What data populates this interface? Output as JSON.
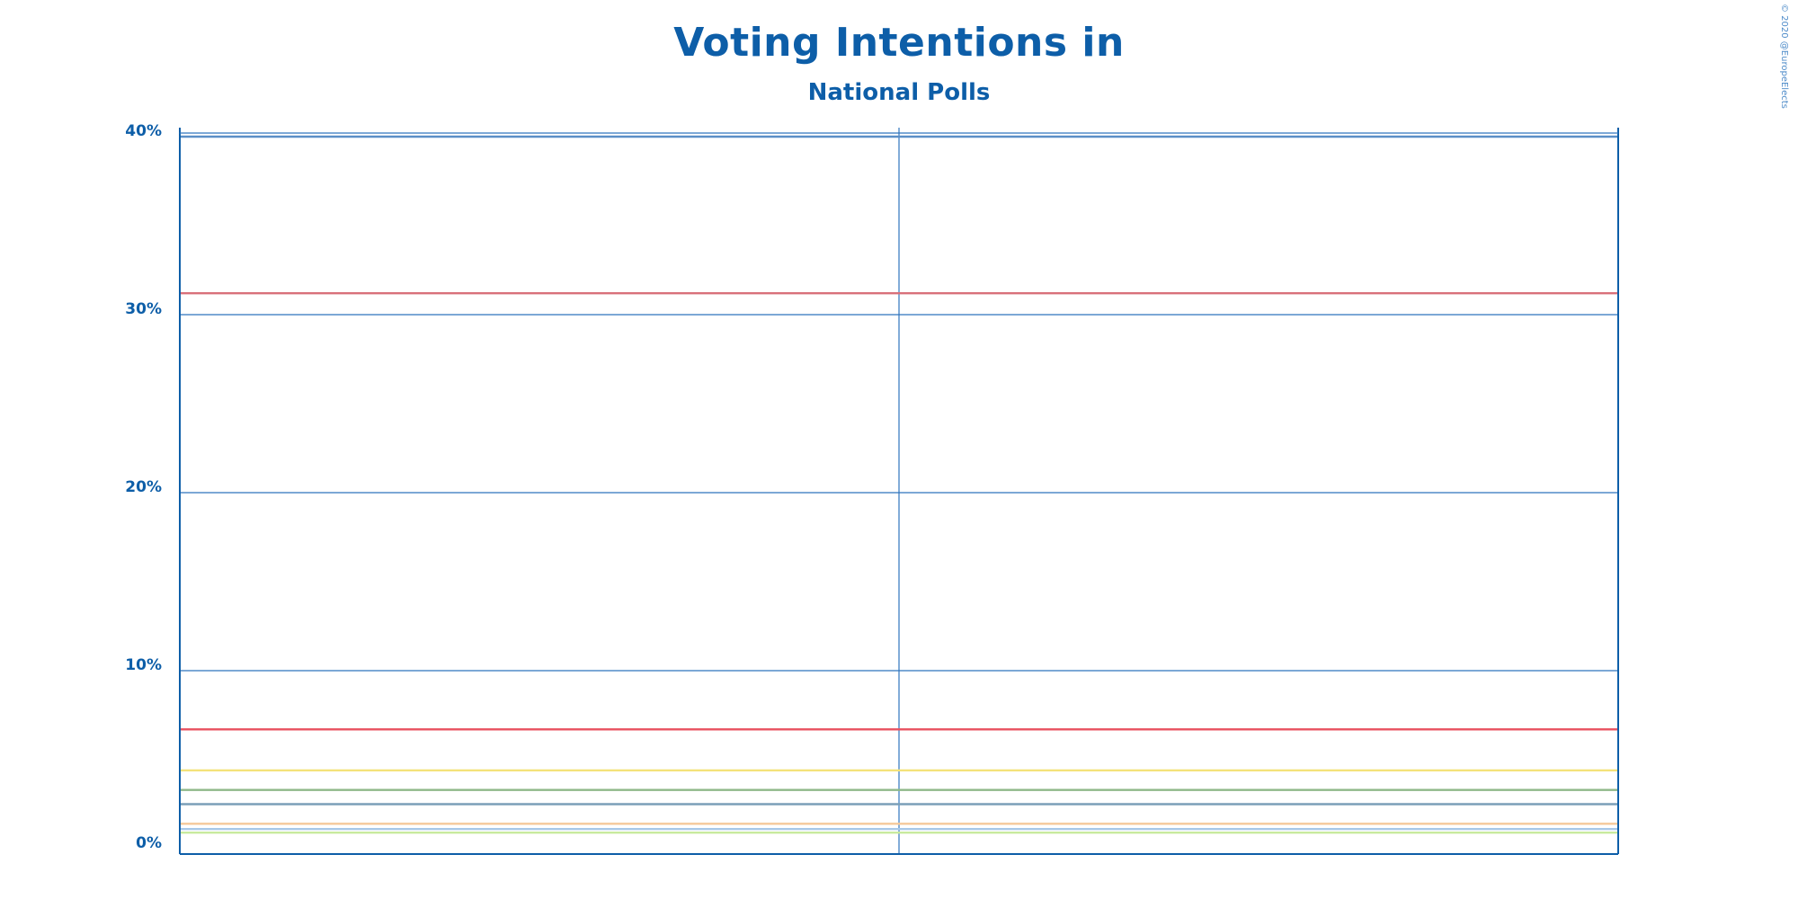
{
  "copyright": "© 2020 @EuropeElects",
  "chart_data": {
    "type": "line",
    "title": "Voting Intentions in",
    "subtitle": "National Polls",
    "xlabel": "",
    "ylabel": "",
    "ylim": [
      0,
      40
    ],
    "y_ticks": [
      0,
      10,
      20,
      30,
      40
    ],
    "y_tick_labels": [
      "0%",
      "10%",
      "20%",
      "30%",
      "40%"
    ],
    "grid": true,
    "series": [
      {
        "color": "#5b8fc7",
        "values": [
          40.0,
          40.0
        ]
      },
      {
        "color": "#d9707a",
        "values": [
          31.2,
          31.2
        ]
      },
      {
        "color": "#e8505f",
        "values": [
          6.7,
          6.7
        ]
      },
      {
        "color": "#f4e27a",
        "values": [
          4.4,
          4.4
        ]
      },
      {
        "color": "#8fb889",
        "values": [
          3.3,
          3.3
        ]
      },
      {
        "color": "#7b9fb8",
        "values": [
          2.5,
          2.5
        ]
      },
      {
        "color": "#f5c99a",
        "values": [
          1.4,
          1.4
        ]
      },
      {
        "color": "#a8c8e8",
        "values": [
          1.1,
          1.1
        ]
      },
      {
        "color": "#c8ea9e",
        "values": [
          0.9,
          0.9
        ]
      }
    ]
  }
}
